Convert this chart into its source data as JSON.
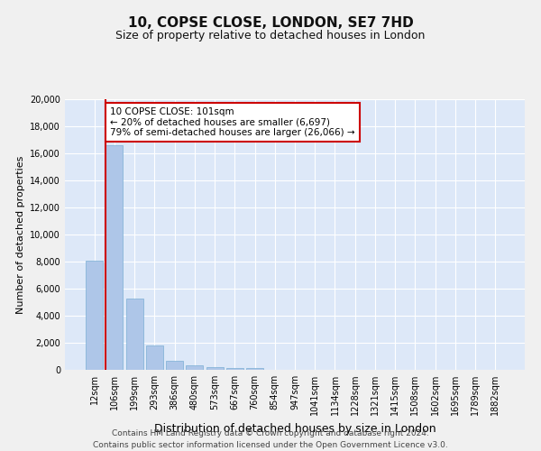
{
  "title": "10, COPSE CLOSE, LONDON, SE7 7HD",
  "subtitle": "Size of property relative to detached houses in London",
  "xlabel": "Distribution of detached houses by size in London",
  "ylabel": "Number of detached properties",
  "categories": [
    "12sqm",
    "106sqm",
    "199sqm",
    "293sqm",
    "386sqm",
    "480sqm",
    "573sqm",
    "667sqm",
    "760sqm",
    "854sqm",
    "947sqm",
    "1041sqm",
    "1134sqm",
    "1228sqm",
    "1321sqm",
    "1415sqm",
    "1508sqm",
    "1602sqm",
    "1695sqm",
    "1789sqm",
    "1882sqm"
  ],
  "bar_values": [
    8100,
    16600,
    5300,
    1800,
    650,
    320,
    185,
    145,
    115,
    0,
    0,
    0,
    0,
    0,
    0,
    0,
    0,
    0,
    0,
    0,
    0
  ],
  "bar_color": "#aec6e8",
  "bar_edge_color": "#7bafd4",
  "background_color": "#dde8f8",
  "grid_color": "#ffffff",
  "property_label": "10 COPSE CLOSE: 101sqm",
  "annotation_line1": "← 20% of detached houses are smaller (6,697)",
  "annotation_line2": "79% of semi-detached houses are larger (26,066) →",
  "annotation_box_color": "#ffffff",
  "annotation_box_edge": "#cc0000",
  "vline_color": "#cc0000",
  "ylim": [
    0,
    20000
  ],
  "yticks": [
    0,
    2000,
    4000,
    6000,
    8000,
    10000,
    12000,
    14000,
    16000,
    18000,
    20000
  ],
  "footer_line1": "Contains HM Land Registry data © Crown copyright and database right 2024.",
  "footer_line2": "Contains public sector information licensed under the Open Government Licence v3.0.",
  "title_fontsize": 11,
  "subtitle_fontsize": 9,
  "xlabel_fontsize": 9,
  "ylabel_fontsize": 8,
  "tick_fontsize": 7,
  "footer_fontsize": 6.5
}
